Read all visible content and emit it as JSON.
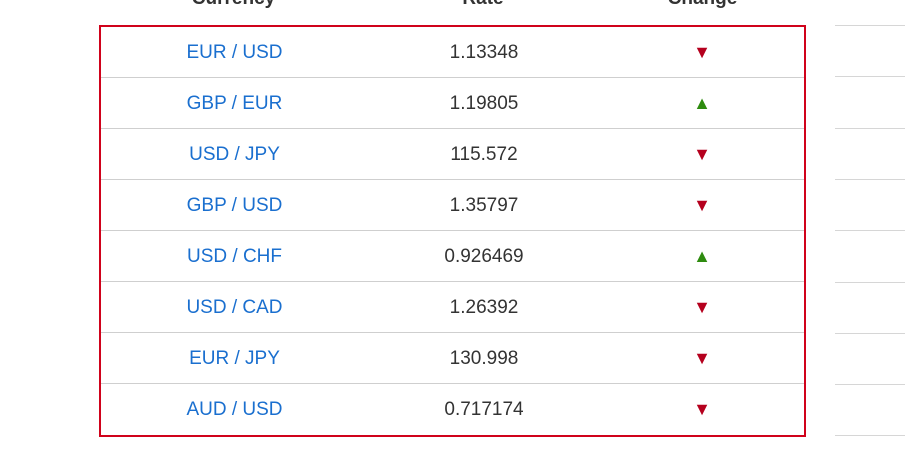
{
  "header": {
    "currency": "Currency",
    "rate": "Rate",
    "change": "Change"
  },
  "rows": [
    {
      "pair": "EUR / USD",
      "rate": "1.13348",
      "change": "▼",
      "direction": "down"
    },
    {
      "pair": "GBP / EUR",
      "rate": "1.19805",
      "change": "▲",
      "direction": "up"
    },
    {
      "pair": "USD / JPY",
      "rate": "115.572",
      "change": "▼",
      "direction": "down"
    },
    {
      "pair": "GBP / USD",
      "rate": "1.35797",
      "change": "▼",
      "direction": "down"
    },
    {
      "pair": "USD / CHF",
      "rate": "0.926469",
      "change": "▲",
      "direction": "up"
    },
    {
      "pair": "USD / CAD",
      "rate": "1.26392",
      "change": "▼",
      "direction": "down"
    },
    {
      "pair": "EUR / JPY",
      "rate": "130.998",
      "change": "▼",
      "direction": "down"
    },
    {
      "pair": "AUD / USD",
      "rate": "0.717174",
      "change": "▼",
      "direction": "down"
    }
  ],
  "colors": {
    "link": "#1a6fcf",
    "down": "#b5001e",
    "up": "#2e8b0f",
    "highlight_border": "#d0021b"
  }
}
